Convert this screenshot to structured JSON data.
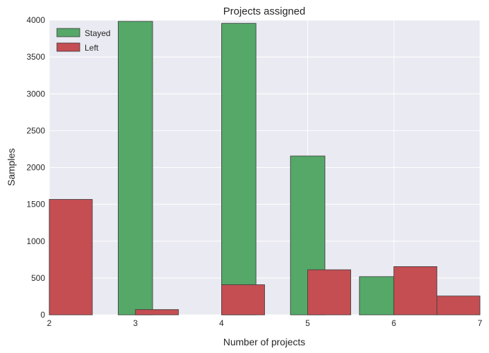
{
  "chart_data": {
    "type": "bar",
    "title": "Projects assigned",
    "xlabel": "Number of projects",
    "ylabel": "Samples",
    "xlim": [
      2,
      7
    ],
    "ylim": [
      0,
      4000
    ],
    "xticks": [
      "2",
      "3",
      "4",
      "5",
      "6",
      "7"
    ],
    "yticks": [
      "0",
      "500",
      "1000",
      "1500",
      "2000",
      "2500",
      "3000",
      "3500",
      "4000"
    ],
    "grid": true,
    "legend_position": "top-left",
    "series": [
      {
        "name": "Stayed",
        "color": "#55a868",
        "bins": [
          {
            "x0": 2.0,
            "x1": 2.5,
            "value": 0
          },
          {
            "x0": 2.8,
            "x1": 3.2,
            "value": 3983
          },
          {
            "x0": 4.0,
            "x1": 4.4,
            "value": 3956
          },
          {
            "x0": 4.8,
            "x1": 5.2,
            "value": 2156
          },
          {
            "x0": 5.6,
            "x1": 6.0,
            "value": 519
          }
        ]
      },
      {
        "name": "Left",
        "color": "#c44e52",
        "bins": [
          {
            "x0": 2.0,
            "x1": 2.5,
            "value": 1567
          },
          {
            "x0": 3.0,
            "x1": 3.5,
            "value": 72
          },
          {
            "x0": 4.0,
            "x1": 4.5,
            "value": 409
          },
          {
            "x0": 5.0,
            "x1": 5.5,
            "value": 612
          },
          {
            "x0": 6.0,
            "x1": 6.5,
            "value": 655
          },
          {
            "x0": 6.5,
            "x1": 7.0,
            "value": 256
          }
        ]
      }
    ]
  }
}
